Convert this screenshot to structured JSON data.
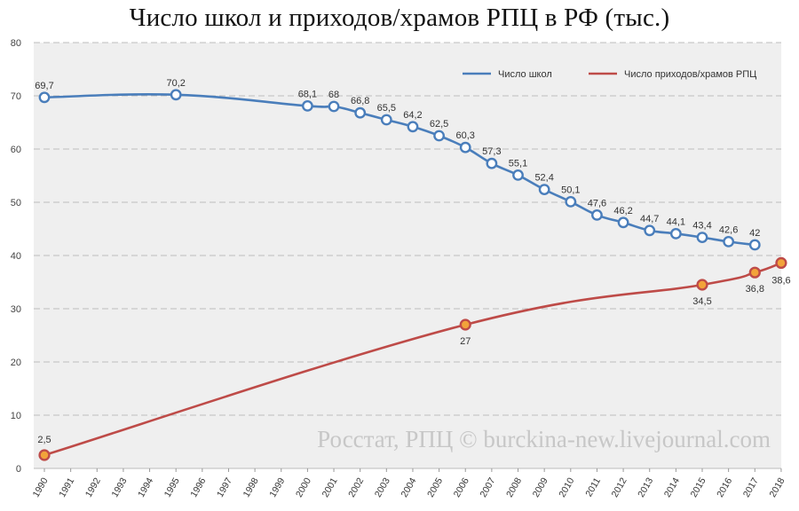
{
  "chart_data": {
    "type": "line",
    "title": "Число школ и приходов/храмов РПЦ в РФ (тыс.)",
    "categories": [
      "1990",
      "1991",
      "1992",
      "1993",
      "1994",
      "1995",
      "1996",
      "1997",
      "1998",
      "1999",
      "2000",
      "2001",
      "2002",
      "2003",
      "2004",
      "2005",
      "2006",
      "2007",
      "2008",
      "2009",
      "2010",
      "2011",
      "2012",
      "2013",
      "2014",
      "2015",
      "2016",
      "2017",
      "2018"
    ],
    "ylim": [
      0,
      80
    ],
    "yticks": [
      0,
      10,
      20,
      30,
      40,
      50,
      60,
      70,
      80
    ],
    "grid": true,
    "legend_position": "top-right",
    "watermark": "Росстат, РПЦ © burckina-new.livejournal.com",
    "series": [
      {
        "name": "Число школ",
        "color": "#4a7ebb",
        "points": [
          {
            "x": "1990",
            "y": 69.7,
            "label": "69,7"
          },
          {
            "x": "1995",
            "y": 70.2,
            "label": "70,2"
          },
          {
            "x": "2000",
            "y": 68.1,
            "label": "68,1"
          },
          {
            "x": "2001",
            "y": 68.0,
            "label": "68"
          },
          {
            "x": "2002",
            "y": 66.8,
            "label": "66,8"
          },
          {
            "x": "2003",
            "y": 65.5,
            "label": "65,5"
          },
          {
            "x": "2004",
            "y": 64.2,
            "label": "64,2"
          },
          {
            "x": "2005",
            "y": 62.5,
            "label": "62,5"
          },
          {
            "x": "2006",
            "y": 60.3,
            "label": "60,3"
          },
          {
            "x": "2007",
            "y": 57.3,
            "label": "57,3"
          },
          {
            "x": "2008",
            "y": 55.1,
            "label": "55,1"
          },
          {
            "x": "2009",
            "y": 52.4,
            "label": "52,4"
          },
          {
            "x": "2010",
            "y": 50.1,
            "label": "50,1"
          },
          {
            "x": "2011",
            "y": 47.6,
            "label": "47,6"
          },
          {
            "x": "2012",
            "y": 46.2,
            "label": "46,2"
          },
          {
            "x": "2013",
            "y": 44.7,
            "label": "44,7"
          },
          {
            "x": "2014",
            "y": 44.1,
            "label": "44,1"
          },
          {
            "x": "2015",
            "y": 43.4,
            "label": "43,4"
          },
          {
            "x": "2016",
            "y": 42.6,
            "label": "42,6"
          },
          {
            "x": "2017",
            "y": 42.0,
            "label": "42"
          }
        ]
      },
      {
        "name": "Число приходов/храмов РПЦ",
        "color": "#be4b48",
        "points": [
          {
            "x": "1990",
            "y": 2.5,
            "label": "2,5"
          },
          {
            "x": "2006",
            "y": 27.0,
            "label": "27"
          },
          {
            "x": "2015",
            "y": 34.5,
            "label": "34,5"
          },
          {
            "x": "2017",
            "y": 36.8,
            "label": "36,8"
          },
          {
            "x": "2018",
            "y": 38.6,
            "label": "38,6"
          }
        ]
      }
    ]
  }
}
